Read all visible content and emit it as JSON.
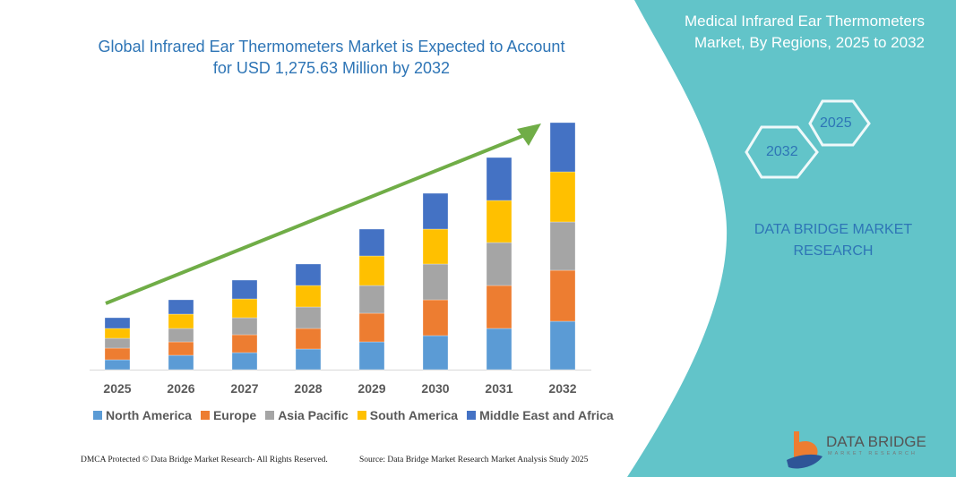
{
  "header": {
    "title_line1": "Global Infrared Ear Thermometers Market is Expected to Account",
    "title_line2": "for USD 1,275.63 Million by 2032"
  },
  "side_panel": {
    "title_line1": "Medical Infrared Ear Thermometers",
    "title_line2": "Market, By Regions, 2025 to 2032",
    "hex_start": "2025",
    "hex_end": "2032",
    "brand_line1": "DATA BRIDGE MARKET",
    "brand_line2": "RESEARCH",
    "logo_text": "DATA BRIDGE",
    "logo_subtext": "MARKET RESEARCH",
    "background_color": "#62c4c9"
  },
  "footer": {
    "left": "DMCA Protected © Data Bridge Market Research-  All Rights Reserved.",
    "right": "Source: Data Bridge Market Research  Market Analysis Study 2025"
  },
  "chart_data": {
    "type": "bar",
    "stacked": true,
    "title": "Global Infrared Ear Thermometers Market is Expected to Account for USD 1,275.63 Million by 2032",
    "categories": [
      "2025",
      "2026",
      "2027",
      "2028",
      "2029",
      "2030",
      "2031",
      "2032"
    ],
    "y_axis_shown": false,
    "value_units": "relative (no axis printed)",
    "grid": false,
    "legend_position": "bottom",
    "trend_arrow": true,
    "trend_arrow_color": "#70ad47",
    "series": [
      {
        "name": "North America",
        "color": "#5b9bd5",
        "values": [
          11,
          16,
          19,
          23,
          31,
          38,
          46,
          54
        ]
      },
      {
        "name": "Europe",
        "color": "#ed7d31",
        "values": [
          13,
          15,
          20,
          23,
          32,
          40,
          48,
          57
        ]
      },
      {
        "name": "Asia Pacific",
        "color": "#a5a5a5",
        "values": [
          11,
          15,
          19,
          24,
          31,
          40,
          48,
          54
        ]
      },
      {
        "name": "South America",
        "color": "#ffc000",
        "values": [
          11,
          16,
          21,
          24,
          33,
          39,
          47,
          56
        ]
      },
      {
        "name": "Middle East and Africa",
        "color": "#4472c4",
        "values": [
          12,
          16,
          21,
          24,
          30,
          40,
          48,
          55
        ]
      }
    ]
  }
}
